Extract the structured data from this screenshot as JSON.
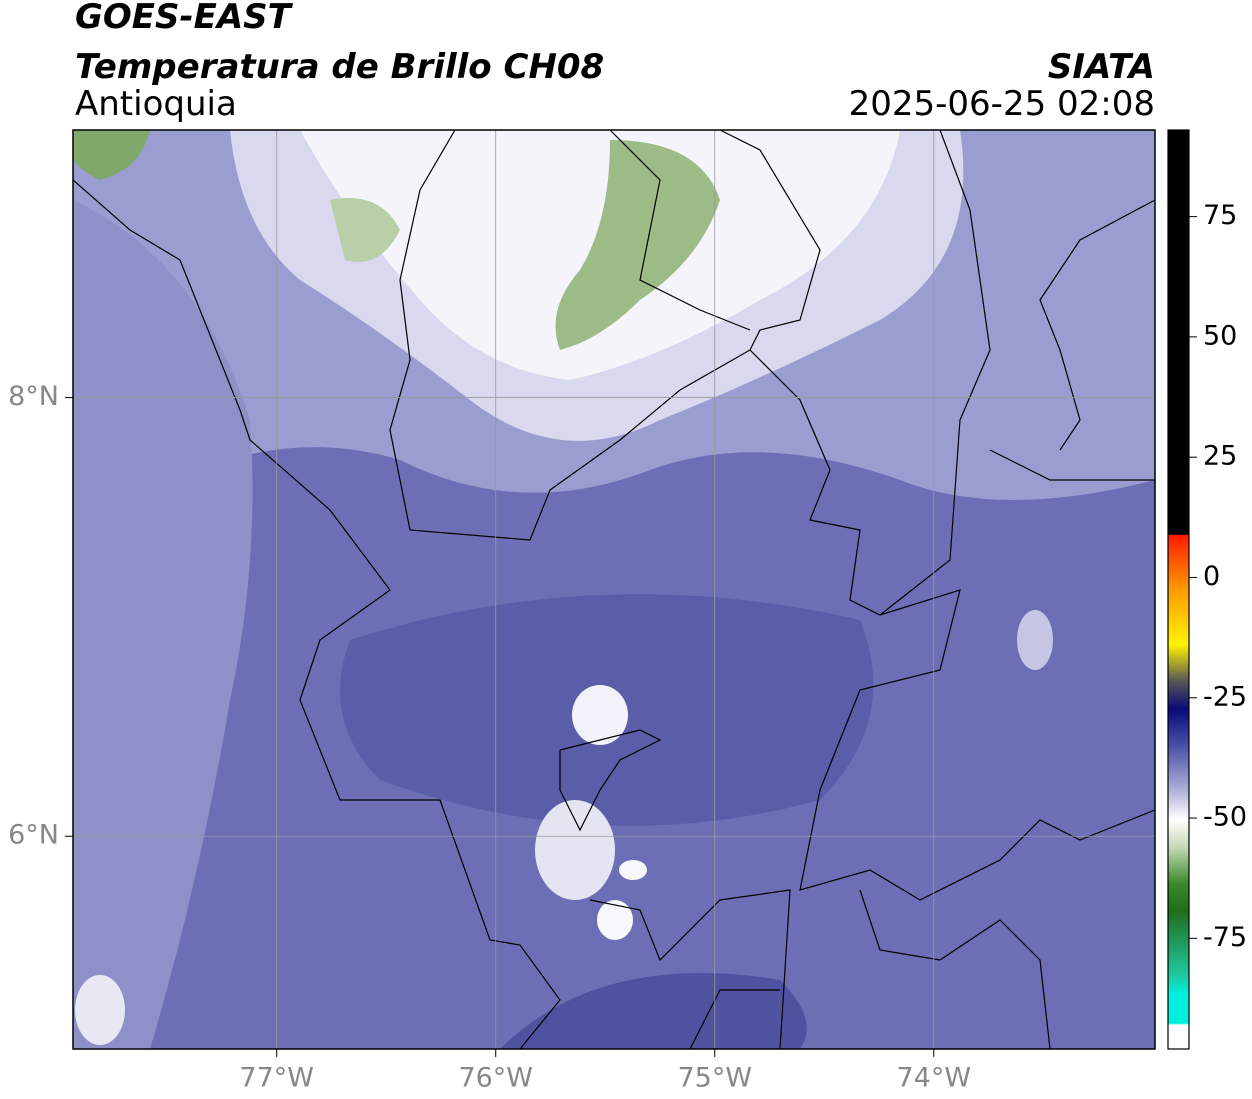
{
  "header": {
    "title": "GOES-EAST",
    "subtitle": "Temperatura de Brillo CH08",
    "region": "Antioquia",
    "source": "SIATA",
    "datetime": "2025-06-25 02:08"
  },
  "map": {
    "xlim": [
      -77.93,
      -72.99
    ],
    "ylim": [
      5.03,
      9.22
    ],
    "xticks": [
      {
        "value": -77,
        "label": "77°W"
      },
      {
        "value": -76,
        "label": "76°W"
      },
      {
        "value": -75,
        "label": "75°W"
      },
      {
        "value": -74,
        "label": "74°W"
      }
    ],
    "yticks": [
      {
        "value": 8,
        "label": "8°N"
      },
      {
        "value": 6,
        "label": "6°N"
      }
    ],
    "grid": true
  },
  "colorbar": {
    "lim": [
      -98,
      93
    ],
    "ticks": [
      75,
      50,
      25,
      0,
      -25,
      -50,
      -75
    ]
  }
}
